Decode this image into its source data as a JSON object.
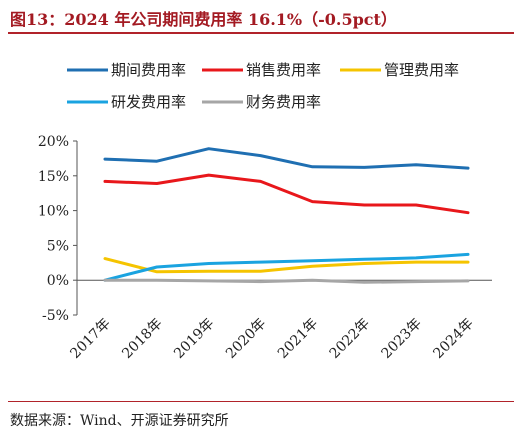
{
  "title": "图13：2024 年公司期间费用率 16.1%（-0.5pct）",
  "source": "数据来源：Wind、开源证券研究所",
  "chart_data": {
    "type": "line",
    "title": "",
    "xlabel": "",
    "ylabel": "",
    "x": [
      "2017年",
      "2018年",
      "2019年",
      "2020年",
      "2021年",
      "2022年",
      "2023年",
      "2024年"
    ],
    "ylim": [
      -5,
      20
    ],
    "yticks": [
      -5,
      0,
      5,
      10,
      15,
      20
    ],
    "ytick_labels": [
      "-5%",
      "0%",
      "5%",
      "10%",
      "15%",
      "20%"
    ],
    "grid": false,
    "legend_position": "top",
    "series": [
      {
        "name": "期间费用率",
        "color": "#1f6fb2",
        "values": [
          17.4,
          17.1,
          18.9,
          17.9,
          16.3,
          16.2,
          16.6,
          16.1
        ]
      },
      {
        "name": "销售费用率",
        "color": "#e8171b",
        "values": [
          14.2,
          13.9,
          15.1,
          14.2,
          11.3,
          10.8,
          10.8,
          9.7
        ]
      },
      {
        "name": "管理费用率",
        "color": "#f5c400",
        "values": [
          3.1,
          1.2,
          1.3,
          1.3,
          2.0,
          2.4,
          2.6,
          2.6
        ]
      },
      {
        "name": "研发费用率",
        "color": "#1aa3e0",
        "values": [
          0.0,
          1.9,
          2.4,
          2.6,
          2.8,
          3.0,
          3.2,
          3.7
        ]
      },
      {
        "name": "财务费用率",
        "color": "#a6a6a6",
        "values": [
          0.0,
          0.0,
          -0.1,
          -0.2,
          0.0,
          -0.3,
          -0.2,
          -0.1
        ]
      }
    ]
  }
}
